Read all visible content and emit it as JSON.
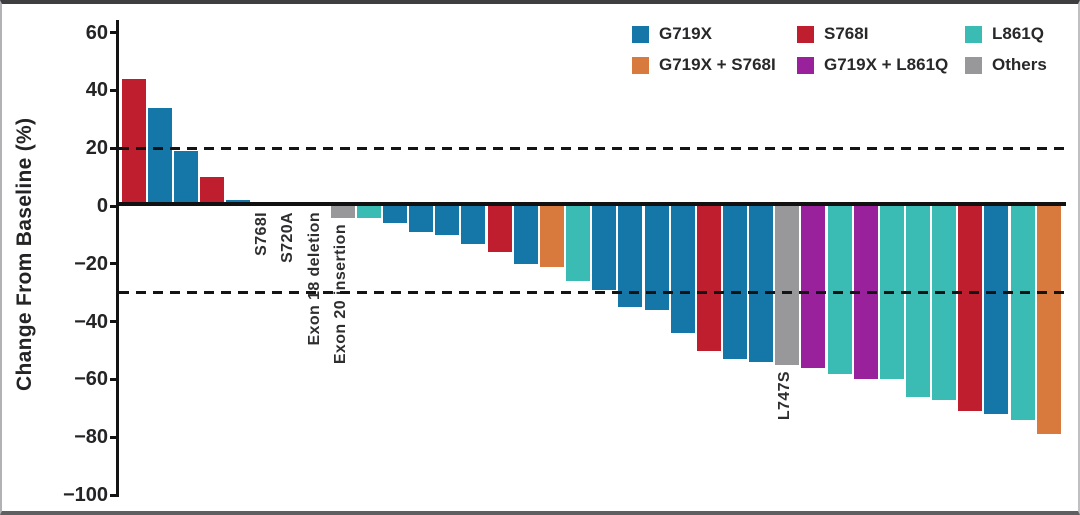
{
  "chart_data": {
    "type": "bar",
    "subtype": "waterfall",
    "title": "",
    "xlabel": "",
    "ylabel": "Change From Baseline (%)",
    "ylim": [
      -100,
      60
    ],
    "yticks": [
      60,
      40,
      20,
      0,
      -20,
      -40,
      -60,
      -80,
      -100
    ],
    "reference_lines": [
      20,
      -30
    ],
    "grid": false,
    "legend_position": "top-right",
    "legend": [
      {
        "name": "G719X",
        "color": "#1477A8"
      },
      {
        "name": "S768I",
        "color": "#BE1E2D"
      },
      {
        "name": "L861Q",
        "color": "#3ABBB4"
      },
      {
        "name": "G719X + S768I",
        "color": "#D8793E"
      },
      {
        "name": "G719X + L861Q",
        "color": "#9A219C"
      },
      {
        "name": "Others",
        "color": "#98989B"
      }
    ],
    "bars": [
      {
        "value": 44,
        "category": "S768I"
      },
      {
        "value": 34,
        "category": "G719X"
      },
      {
        "value": 19,
        "category": "G719X"
      },
      {
        "value": 10,
        "category": "S768I"
      },
      {
        "value": 2,
        "category": "G719X"
      },
      {
        "value": 0,
        "category": "S768I",
        "annotation": "S768I"
      },
      {
        "value": 0,
        "category": "Others",
        "annotation": "S720A"
      },
      {
        "value": 0,
        "category": "Others",
        "annotation": "Exon 18 deletion"
      },
      {
        "value": -4,
        "category": "Others",
        "annotation": "Exon 20 insertion"
      },
      {
        "value": -4,
        "category": "L861Q"
      },
      {
        "value": -6,
        "category": "G719X"
      },
      {
        "value": -9,
        "category": "G719X"
      },
      {
        "value": -10,
        "category": "G719X"
      },
      {
        "value": -13,
        "category": "G719X"
      },
      {
        "value": -16,
        "category": "S768I"
      },
      {
        "value": -20,
        "category": "G719X"
      },
      {
        "value": -21,
        "category": "G719X + S768I"
      },
      {
        "value": -26,
        "category": "L861Q"
      },
      {
        "value": -29,
        "category": "G719X"
      },
      {
        "value": -35,
        "category": "G719X"
      },
      {
        "value": -36,
        "category": "G719X"
      },
      {
        "value": -44,
        "category": "G719X"
      },
      {
        "value": -50,
        "category": "S768I"
      },
      {
        "value": -53,
        "category": "G719X"
      },
      {
        "value": -54,
        "category": "G719X"
      },
      {
        "value": -55,
        "category": "Others",
        "annotation": "L747S"
      },
      {
        "value": -56,
        "category": "G719X + L861Q"
      },
      {
        "value": -58,
        "category": "L861Q"
      },
      {
        "value": -60,
        "category": "G719X + L861Q"
      },
      {
        "value": -60,
        "category": "L861Q"
      },
      {
        "value": -66,
        "category": "L861Q"
      },
      {
        "value": -67,
        "category": "L861Q"
      },
      {
        "value": -71,
        "category": "S768I"
      },
      {
        "value": -72,
        "category": "G719X"
      },
      {
        "value": -74,
        "category": "L861Q"
      },
      {
        "value": -79,
        "category": "G719X + S768I"
      }
    ]
  }
}
